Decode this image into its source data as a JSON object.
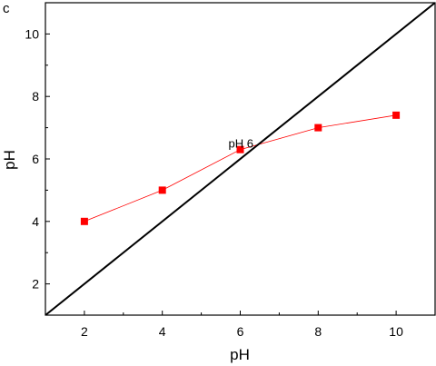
{
  "chart_data": {
    "type": "scatter",
    "panel_label": "c",
    "xlabel": "pH",
    "ylabel": "pH",
    "xlim": [
      1,
      11
    ],
    "ylim": [
      1,
      11
    ],
    "x_ticks": [
      2,
      4,
      6,
      8,
      10
    ],
    "y_ticks": [
      2,
      4,
      6,
      8,
      10
    ],
    "grid": false,
    "series": [
      {
        "x": [
          2,
          4,
          6,
          8,
          10
        ],
        "y": [
          4.0,
          5.0,
          6.3,
          7.0,
          7.4
        ],
        "color": "#ff0000",
        "marker": "square",
        "line": true
      },
      {
        "x": [
          1,
          11
        ],
        "y": [
          1,
          11
        ],
        "color": "#000000",
        "marker": "none",
        "line": true
      }
    ],
    "annotations": [
      {
        "text": "pH 6",
        "x": 6,
        "y": 6.3
      }
    ]
  }
}
